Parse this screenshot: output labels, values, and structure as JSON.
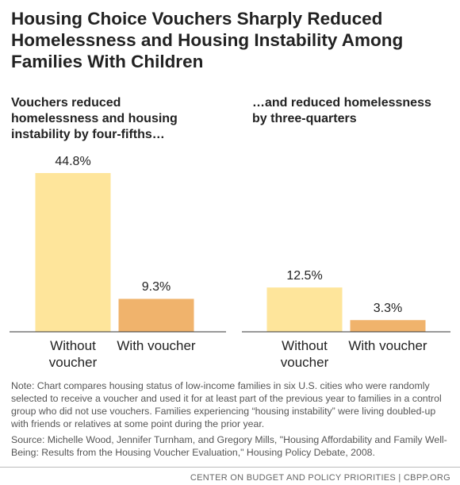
{
  "title": "Housing Choice Vouchers Sharply Reduced Homelessness and Housing Instability Among Families With Children",
  "chart_data": [
    {
      "type": "bar",
      "title": "Vouchers reduced homelessness and housing instability by four-fifths…",
      "categories": [
        "Without voucher",
        "With voucher"
      ],
      "values": [
        44.8,
        9.3
      ],
      "value_labels": [
        "44.8%",
        "9.3%"
      ],
      "colors": [
        "#fee59b",
        "#f0b36c"
      ]
    },
    {
      "type": "bar",
      "title": "…and reduced homelessness by three-quarters",
      "categories": [
        "Without voucher",
        "With voucher"
      ],
      "values": [
        12.5,
        3.3
      ],
      "value_labels": [
        "12.5%",
        "3.3%"
      ],
      "colors": [
        "#fee59b",
        "#f0b36c"
      ]
    }
  ],
  "note": "Note: Chart compares housing status of low-income families in six U.S. cities who were randomly selected to receive a voucher and used it for at least part of the previous year to families in a control group who did not use vouchers. Families experiencing “housing instability” were living doubled-up with friends or relatives at some point during the prior year.",
  "source": "Source: Michelle Wood, Jennifer Turnham, and Gregory Mills, \"Housing Affordability and Family Well-Being: Results from the Housing Voucher Evaluation,\" Housing Policy Debate, 2008.",
  "footer": "CENTER ON BUDGET AND POLICY PRIORITIES | CBPP.ORG"
}
